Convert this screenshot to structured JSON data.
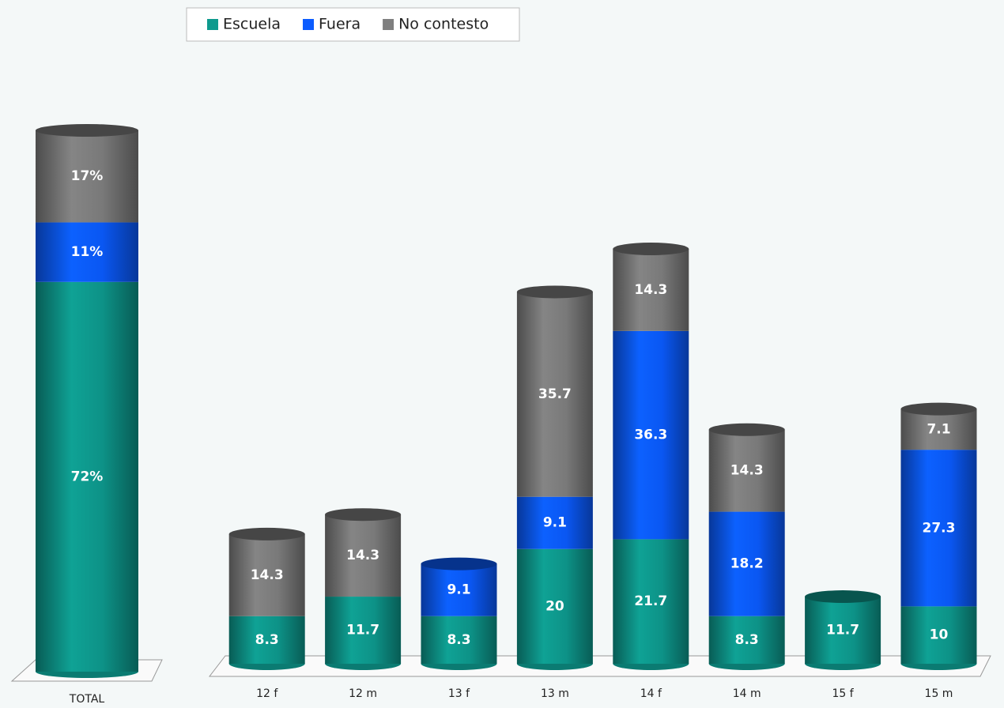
{
  "chart_data": [
    {
      "type": "bar",
      "stacked": true,
      "categories": [
        "TOTAL"
      ],
      "series": [
        {
          "color": "#0e9a8e",
          "values": [
            72
          ],
          "value_labels": [
            "72%"
          ]
        },
        {
          "color": "#0b5cff",
          "values": [
            11
          ],
          "value_labels": [
            "11%"
          ]
        },
        {
          "color": "#7f7f7f",
          "values": [
            17
          ],
          "value_labels": [
            "17%"
          ]
        }
      ]
    },
    {
      "type": "bar",
      "stacked": true,
      "legend": "top",
      "categories": [
        "12 f",
        "12 m",
        "13 f",
        "13 m",
        "14 f",
        "14 m",
        "15 f",
        "15 m"
      ],
      "series": [
        {
          "name": "Escuela",
          "color": "#0e9a8e",
          "values": [
            8.3,
            11.7,
            8.3,
            20,
            21.7,
            8.3,
            11.7,
            10
          ]
        },
        {
          "name": "Fuera",
          "color": "#0b5cff",
          "values": [
            null,
            null,
            9.1,
            9.1,
            36.3,
            18.2,
            null,
            27.3
          ]
        },
        {
          "name": "No contesto",
          "color": "#7f7f7f",
          "values": [
            14.3,
            14.3,
            null,
            35.7,
            14.3,
            14.3,
            null,
            7.1
          ]
        }
      ]
    }
  ]
}
